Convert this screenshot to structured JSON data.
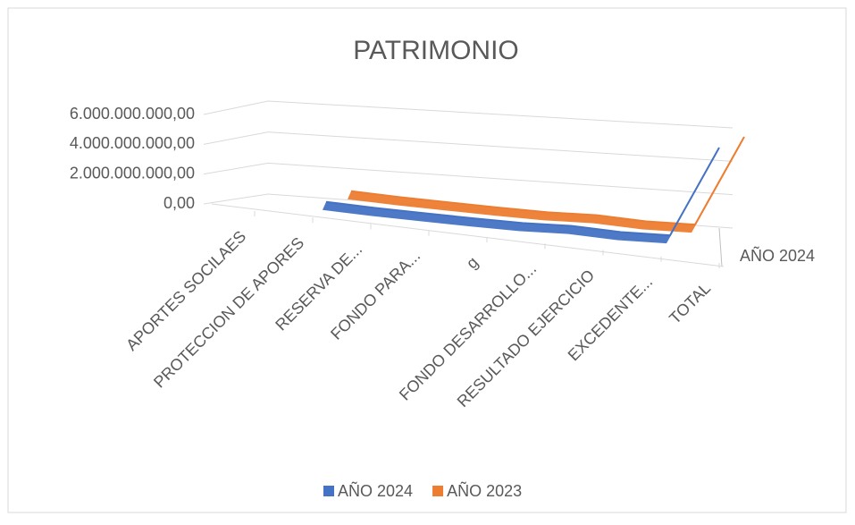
{
  "chart_data": {
    "type": "line3d",
    "title": "PATRIMONIO",
    "categories": [
      "APORTES SOCILAES",
      "PROTECCION DE APORES",
      "RESERVA DE...",
      "FONDO PARA...",
      "g",
      "FONDO DESARROLLO...",
      "RESULTADO EJERCICIO",
      "EXCEDENTE...",
      "TOTAL"
    ],
    "series": [
      {
        "name": "AÑO 2024",
        "color": "#4472c4",
        "values": [
          300000000,
          200000000,
          150000000,
          100000000,
          80000000,
          150000000,
          50000000,
          100000000,
          5000000000
        ]
      },
      {
        "name": "AÑO 2023",
        "color": "#ed7d31",
        "values": [
          300000000,
          200000000,
          150000000,
          100000000,
          80000000,
          150000000,
          50000000,
          100000000,
          5000000000
        ]
      }
    ],
    "depth_labels": [
      "AÑO 2024"
    ],
    "ylim": [
      0,
      6000000000
    ],
    "yticks": [
      {
        "value": 0,
        "label": "0,00"
      },
      {
        "value": 2000000000,
        "label": "2.000.000.000,00"
      },
      {
        "value": 4000000000,
        "label": "4.000.000.000,00"
      },
      {
        "value": 6000000000,
        "label": "6.000.000.000,00"
      }
    ],
    "grid": true,
    "legend": "bottom"
  }
}
